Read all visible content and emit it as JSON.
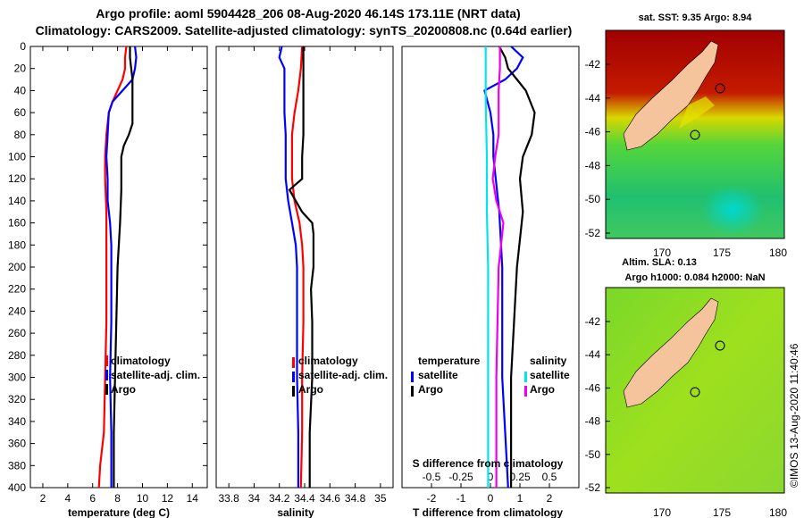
{
  "header": {
    "title_line1": "Argo profile: aoml 5904428_206 08-Aug-2020 46.14S 173.11E (NRT data)",
    "title_line2": "Climatology: CARS2009. Satellite-adjusted climatology: synTS_20200808.nc (0.64d earlier)"
  },
  "colors": {
    "climatology": "#ff0000",
    "satellite": "#0000ff",
    "argo": "#000000",
    "sal_satellite": "#00e5ee",
    "sal_argo": "#ee00ee",
    "land": "#f5c39c"
  },
  "chart_data": [
    {
      "type": "line",
      "name": "temperature-panel",
      "xlabel": "temperature (deg C)",
      "ylabel": "",
      "xlim": [
        1,
        15.2
      ],
      "ylim": [
        400,
        0
      ],
      "xticks": [
        "2",
        "4",
        "6",
        "8",
        "10",
        "12",
        "14"
      ],
      "yticks": [
        "0",
        "20",
        "40",
        "60",
        "80",
        "100",
        "120",
        "140",
        "160",
        "180",
        "200",
        "220",
        "240",
        "260",
        "280",
        "300",
        "320",
        "340",
        "360",
        "380",
        "400"
      ],
      "legend": [
        "climatology",
        "satellite-adj. clim.",
        "Argo"
      ],
      "series": [
        {
          "name": "climatology",
          "depth": [
            0,
            10,
            20,
            30,
            40,
            50,
            60,
            80,
            100,
            120,
            150,
            200,
            250,
            300,
            350,
            380,
            400
          ],
          "values": [
            8.7,
            8.6,
            8.6,
            8.4,
            8.0,
            7.6,
            7.3,
            7.1,
            7.0,
            7.0,
            7.1,
            7.1,
            7.1,
            7.0,
            6.9,
            6.6,
            6.5
          ]
        },
        {
          "name": "satellite-adj. clim.",
          "depth": [
            0,
            10,
            20,
            30,
            40,
            50,
            60,
            80,
            100,
            120,
            140,
            160,
            180,
            200,
            250,
            300,
            350,
            400
          ],
          "values": [
            9.4,
            9.5,
            9.4,
            9.2,
            8.4,
            7.6,
            7.3,
            7.2,
            7.1,
            7.2,
            7.2,
            7.4,
            7.5,
            7.5,
            7.5,
            7.4,
            7.5,
            7.5
          ]
        },
        {
          "name": "Argo",
          "depth": [
            0,
            10,
            20,
            30,
            40,
            50,
            60,
            70,
            80,
            90,
            100,
            130,
            160,
            180,
            200,
            250,
            300,
            350,
            400
          ],
          "values": [
            9.0,
            9.0,
            9.1,
            9.2,
            9.2,
            9.2,
            9.2,
            9.2,
            8.9,
            8.5,
            8.3,
            8.3,
            8.2,
            8.1,
            8.0,
            7.9,
            7.8,
            7.7,
            7.7
          ]
        }
      ]
    },
    {
      "type": "line",
      "name": "salinity-panel",
      "xlabel": "salinity",
      "xlim": [
        33.7,
        35.1
      ],
      "ylim": [
        400,
        0
      ],
      "xticks": [
        "33.8",
        "34",
        "34.2",
        "34.4",
        "34.6",
        "34.8",
        "35"
      ],
      "legend": [
        "climatology",
        "satellite-adj. clim.",
        "Argo"
      ],
      "series": [
        {
          "name": "climatology",
          "depth": [
            0,
            20,
            40,
            60,
            80,
            100,
            120,
            140,
            160,
            180,
            200,
            250,
            300,
            350,
            400
          ],
          "values": [
            34.38,
            34.37,
            34.35,
            34.32,
            34.3,
            34.3,
            34.3,
            34.32,
            34.36,
            34.38,
            34.39,
            34.39,
            34.38,
            34.38,
            34.37
          ]
        },
        {
          "name": "satellite-adj. clim.",
          "depth": [
            0,
            10,
            20,
            40,
            60,
            80,
            100,
            120,
            140,
            160,
            180,
            200,
            250,
            300,
            350,
            400
          ],
          "values": [
            34.22,
            34.2,
            34.24,
            34.24,
            34.24,
            34.25,
            34.25,
            34.25,
            34.27,
            34.3,
            34.33,
            34.34,
            34.34,
            34.34,
            34.35,
            34.35
          ]
        },
        {
          "name": "Argo",
          "depth": [
            0,
            20,
            40,
            60,
            80,
            100,
            120,
            130,
            140,
            150,
            160,
            170,
            200,
            220,
            250,
            300,
            350,
            400
          ],
          "values": [
            34.39,
            34.39,
            34.39,
            34.39,
            34.39,
            34.38,
            34.38,
            34.28,
            34.33,
            34.38,
            34.46,
            34.47,
            34.47,
            34.45,
            34.46,
            34.46,
            34.44,
            34.44
          ]
        }
      ]
    },
    {
      "type": "line",
      "name": "difference-panel",
      "xlabel": "T difference from climatology",
      "top_label": "S difference from climatology",
      "xlim": [
        -3,
        3
      ],
      "ylim": [
        400,
        0
      ],
      "xticks": [
        "-2",
        "-1",
        "0",
        "1",
        "2"
      ],
      "top_ticks": [
        "-0.5",
        "-0.25",
        "0",
        "0.25",
        "0.5"
      ],
      "legend_temperature": {
        "title": "temperature",
        "items": [
          "satellite",
          "Argo"
        ]
      },
      "legend_salinity": {
        "title": "salinity",
        "items": [
          "satellite",
          "Argo"
        ]
      },
      "series": [
        {
          "name": "T satellite",
          "depth": [
            0,
            10,
            20,
            30,
            40,
            50,
            60,
            80,
            100,
            150,
            200,
            250,
            300,
            350,
            400
          ],
          "values": [
            0.7,
            1.1,
            0.9,
            0.5,
            -0.2,
            -0.1,
            0.0,
            0.1,
            0.1,
            0.3,
            0.4,
            0.4,
            0.4,
            0.5,
            0.6
          ]
        },
        {
          "name": "T Argo",
          "depth": [
            0,
            10,
            20,
            30,
            40,
            60,
            80,
            100,
            120,
            150,
            200,
            250,
            300,
            350,
            400
          ],
          "values": [
            0.3,
            0.5,
            0.6,
            0.9,
            1.2,
            1.5,
            1.4,
            1.1,
            1.0,
            1.1,
            0.9,
            0.8,
            0.7,
            0.7,
            0.7
          ]
        },
        {
          "name": "S satellite",
          "depth": [
            0,
            50,
            100,
            150,
            200,
            250,
            300,
            350,
            400
          ],
          "values": [
            -0.04,
            -0.04,
            -0.03,
            -0.03,
            -0.02,
            -0.02,
            -0.02,
            -0.02,
            -0.02
          ]
        },
        {
          "name": "S Argo",
          "depth": [
            0,
            20,
            40,
            60,
            80,
            100,
            120,
            140,
            160,
            180,
            200,
            250,
            300,
            350,
            400
          ],
          "values": [
            0.08,
            0.08,
            0.07,
            0.07,
            0.07,
            0.04,
            0.02,
            0.05,
            0.11,
            0.09,
            0.07,
            0.06,
            0.05,
            0.05,
            0.05
          ]
        }
      ]
    }
  ],
  "maps": {
    "sst_title": "sat. SST: 9.35 Argo: 8.94",
    "sla_title1": "Altim. SLA: 0.13",
    "sla_title2": "Argo h1000: 0.084 h2000: NaN",
    "lat_ticks": [
      "-42",
      "-44",
      "-46",
      "-48",
      "-50",
      "-52"
    ],
    "lon_ticks": [
      "170",
      "175",
      "180"
    ],
    "timestamp": "©IMOS 13-Aug-2020 11:40:46"
  }
}
